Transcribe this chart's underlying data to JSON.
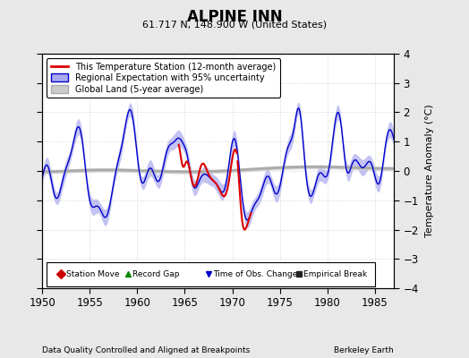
{
  "title": "ALPINE INN",
  "subtitle": "61.717 N, 148.900 W (United States)",
  "xlabel_left": "Data Quality Controlled and Aligned at Breakpoints",
  "xlabel_right": "Berkeley Earth",
  "ylabel": "Temperature Anomaly (°C)",
  "xlim": [
    1950,
    1987
  ],
  "ylim": [
    -4,
    4
  ],
  "yticks": [
    -4,
    -3,
    -2,
    -1,
    0,
    1,
    2,
    3,
    4
  ],
  "xticks": [
    1950,
    1955,
    1960,
    1965,
    1970,
    1975,
    1980,
    1985
  ],
  "background_color": "#e8e8e8",
  "plot_bg_color": "#ffffff",
  "regional_color": "#0000cc",
  "regional_fill_color": "#aaaaee",
  "station_color": "#dd0000",
  "global_color": "#aaaaaa",
  "global_fill_color": "#cccccc",
  "legend_labels": [
    "This Temperature Station (12-month average)",
    "Regional Expectation with 95% uncertainty",
    "Global Land (5-year average)"
  ],
  "bottom_legend": [
    {
      "marker": "D",
      "color": "#cc0000",
      "label": "Station Move"
    },
    {
      "marker": "^",
      "color": "#008800",
      "label": "Record Gap"
    },
    {
      "marker": "v",
      "color": "#0000cc",
      "label": "Time of Obs. Change"
    },
    {
      "marker": "s",
      "color": "#222222",
      "label": "Empirical Break"
    }
  ]
}
